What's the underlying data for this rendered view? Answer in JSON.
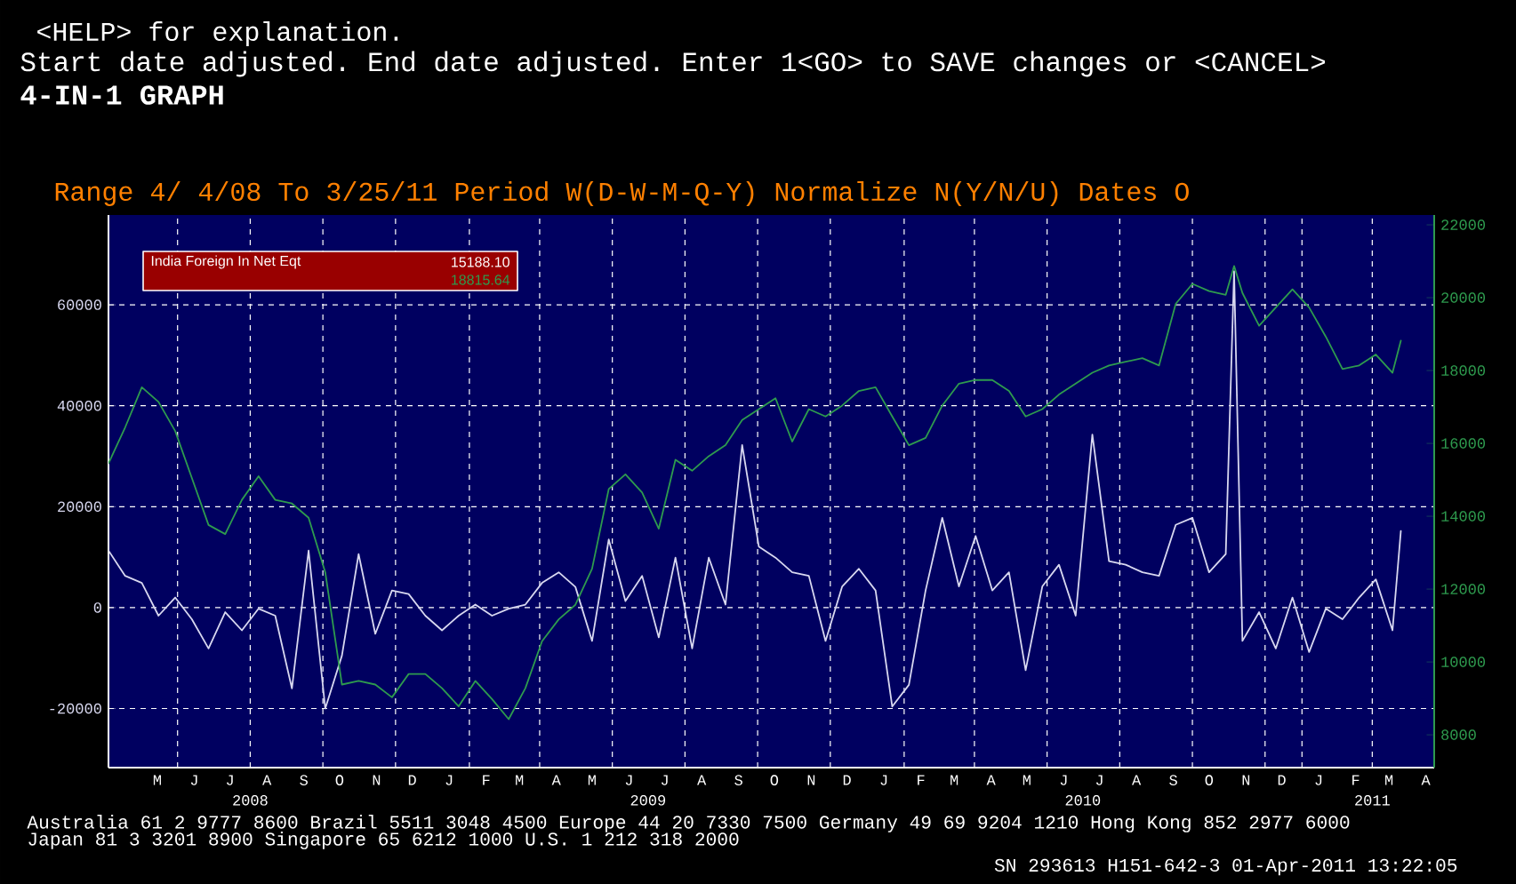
{
  "chart_data": {
    "type": "line",
    "annotations": [
      "<HELP> for explanation.",
      "Start date adjusted. End date adjusted. Enter 1<GO> to SAVE changes or <CANCEL>",
      "4-IN-1 GRAPH",
      "Range 4/ 4/08 To 3/25/11 Period W(D-W-M-Q-Y) Normalize N(Y/N/U) Dates O",
      "15188.10",
      "18815.64",
      "Australia 61 2 9777 8600 Brazil 5511 3048 4500 Europe 44 20 7330 7500 Germany 49 69 9204 1210 Hong Kong 852 2977 6000",
      "Japan 81 3 3201 8900 Singapore 65 6212 1000 U.S. 1 212 318 2000",
      "SN 293613 H151-642-3 01-Apr-2011 13:22:05",
      "M",
      "J",
      "J",
      "A",
      "S",
      "O",
      "N",
      "D",
      "J",
      "F",
      "M",
      "A",
      "M",
      "J",
      "J",
      "A",
      "S",
      "O",
      "N",
      "D",
      "J",
      "F",
      "M",
      "A",
      "M",
      "J",
      "J",
      "A",
      "S",
      "O",
      "N",
      "D",
      "J",
      "F",
      "M",
      "A"
    ],
    "x": [
      "2008-04-04",
      "2008-04-18",
      "2008-05-02",
      "2008-05-16",
      "2008-05-30",
      "2008-06-13",
      "2008-06-27",
      "2008-07-11",
      "2008-07-25",
      "2008-08-08",
      "2008-08-22",
      "2008-09-05",
      "2008-09-19",
      "2008-10-03",
      "2008-10-17",
      "2008-10-31",
      "2008-11-14",
      "2008-11-28",
      "2008-12-12",
      "2008-12-26",
      "2009-01-09",
      "2009-01-23",
      "2009-02-06",
      "2009-02-20",
      "2009-03-06",
      "2009-03-20",
      "2009-04-03",
      "2009-04-17",
      "2009-05-01",
      "2009-05-15",
      "2009-05-29",
      "2009-06-12",
      "2009-06-26",
      "2009-07-10",
      "2009-07-24",
      "2009-08-07",
      "2009-08-21",
      "2009-09-04",
      "2009-09-18",
      "2009-10-02",
      "2009-10-16",
      "2009-10-30",
      "2009-11-13",
      "2009-11-27",
      "2009-12-11",
      "2009-12-25",
      "2010-01-08",
      "2010-01-22",
      "2010-02-05",
      "2010-02-19",
      "2010-03-05",
      "2010-03-19",
      "2010-04-02",
      "2010-04-16",
      "2010-04-30",
      "2010-05-14",
      "2010-05-28",
      "2010-06-11",
      "2010-06-25",
      "2010-07-09",
      "2010-07-23",
      "2010-08-06",
      "2010-08-20",
      "2010-09-03",
      "2010-09-17",
      "2010-10-01",
      "2010-10-15",
      "2010-10-29",
      "2010-11-05",
      "2010-11-12",
      "2010-11-26",
      "2010-12-10",
      "2010-12-24",
      "2011-01-07",
      "2011-01-21",
      "2011-02-04",
      "2011-02-18",
      "2011-03-04",
      "2011-03-18",
      "2011-03-25"
    ],
    "series": [
      {
        "name": "India Foreign In Net Eqt",
        "color": "#d8d8f0",
        "values": [
          11300,
          6300,
          4900,
          -1600,
          2000,
          -2300,
          -8100,
          -900,
          -4500,
          -200,
          -1600,
          -16000,
          11300,
          -20000,
          -9500,
          10600,
          -5200,
          3400,
          2700,
          -1600,
          -4500,
          -1600,
          600,
          -1600,
          -200,
          600,
          4900,
          7000,
          4100,
          -6600,
          13500,
          1300,
          6300,
          -5900,
          9900,
          -8100,
          9900,
          600,
          32200,
          12100,
          9900,
          7000,
          6300,
          -6600,
          4200,
          7700,
          3400,
          -19600,
          -15300,
          3400,
          17800,
          4200,
          14200,
          3400,
          7000,
          -12400,
          4200,
          8500,
          -1600,
          34300,
          9200,
          8500,
          7000,
          6300,
          16400,
          17800,
          7000,
          10600,
          66700,
          -6600,
          -900,
          -8100,
          2000,
          -8800,
          -200,
          -2300,
          2000,
          5600,
          -4500,
          15200
        ]
      },
      {
        "color": "#2e9b4e",
        "axis": "y2",
        "values": [
          15450,
          16440,
          17540,
          17140,
          16340,
          15050,
          13760,
          13510,
          14450,
          15100,
          14450,
          14350,
          13960,
          12460,
          9380,
          9480,
          9380,
          9030,
          9670,
          9670,
          9280,
          8780,
          9480,
          8980,
          8430,
          9280,
          10570,
          11170,
          11570,
          12560,
          14750,
          15150,
          14650,
          13660,
          15550,
          15250,
          15650,
          15950,
          16640,
          16940,
          17240,
          16050,
          16940,
          16740,
          17040,
          17440,
          17540,
          16740,
          15950,
          16150,
          17040,
          17640,
          17740,
          17740,
          17440,
          16740,
          16940,
          17340,
          17640,
          17940,
          18140,
          18240,
          18340,
          18140,
          19830,
          20380,
          20180,
          20080,
          20870,
          20130,
          19230,
          19730,
          20230,
          19730,
          18930,
          18040,
          18140,
          18440,
          17940,
          18820
        ]
      }
    ],
    "xlim": [
      "2008-04-04",
      "2011-04-22"
    ],
    "xticks": [
      {
        "value": "2008-06-01",
        "label": null
      },
      {
        "value": "2008-08-01",
        "label": null
      },
      {
        "value": "2008-10-01",
        "label": null
      },
      {
        "value": "2008-12-01",
        "label": null
      },
      {
        "value": "2009-02-01",
        "label": null
      },
      {
        "value": "2009-04-01",
        "label": null
      },
      {
        "value": "2009-06-01",
        "label": null
      },
      {
        "value": "2009-08-01",
        "label": null
      },
      {
        "value": "2009-10-01",
        "label": null
      },
      {
        "value": "2009-12-01",
        "label": null
      },
      {
        "value": "2010-02-01",
        "label": null
      },
      {
        "value": "2010-04-01",
        "label": null
      },
      {
        "value": "2010-06-01",
        "label": null
      },
      {
        "value": "2010-08-01",
        "label": null
      },
      {
        "value": "2010-10-01",
        "label": null
      },
      {
        "value": "2010-12-01",
        "label": null
      },
      {
        "value": "2011-01-01",
        "label": null
      },
      {
        "value": "2011-03-01",
        "label": null
      },
      {
        "value": "2008-08-01",
        "label": "2008"
      },
      {
        "value": "2009-07-01",
        "label": "2009"
      },
      {
        "value": "2010-07-01",
        "label": "2010"
      },
      {
        "value": "2011-03-01",
        "label": "2011"
      }
    ],
    "ylim": [
      -31700,
      77800
    ],
    "yticks": [
      -20000,
      0,
      20000,
      40000,
      60000
    ],
    "y2lim": [
      7100,
      22270
    ],
    "y2ticks": [
      8000,
      10000,
      12000,
      14000,
      16000,
      18000,
      20000,
      22000
    ],
    "grid": true,
    "legend": "top left"
  }
}
